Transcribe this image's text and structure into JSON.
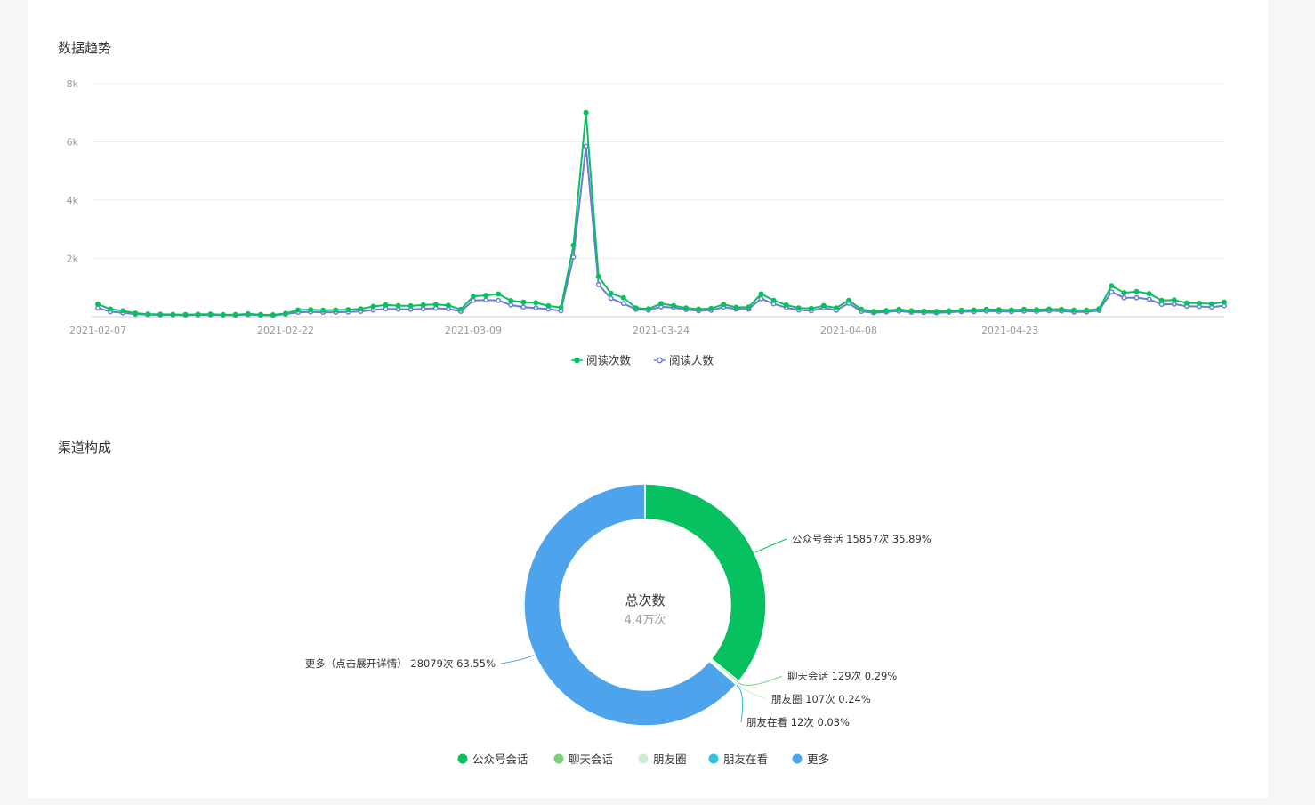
{
  "sections": {
    "trend_title": "数据趋势",
    "channel_title": "渠道构成"
  },
  "colors": {
    "reads": "#07c160",
    "readers": "#6e7ad8",
    "pie": [
      "#07c160",
      "#7dd07a",
      "#c8efd0",
      "#30c0e0",
      "#4ea4ec"
    ]
  },
  "chart_data": [
    {
      "type": "line",
      "title": "数据趋势",
      "x_start": "2021-02-07",
      "x_end": "2021-04-23",
      "x_tick_labels": [
        "2021-02-07",
        "2021-02-22",
        "2021-03-09",
        "2021-03-24",
        "2021-04-08",
        "2021-04-23"
      ],
      "y_tick_labels": [
        "8k",
        "6k",
        "4k",
        "2k"
      ],
      "ylim": [
        0,
        8000
      ],
      "grid": true,
      "legend_position": "bottom-center",
      "series": [
        {
          "name": "阅读次数",
          "values": [
            430,
            260,
            200,
            120,
            90,
            80,
            75,
            70,
            80,
            85,
            70,
            70,
            95,
            70,
            60,
            110,
            230,
            240,
            220,
            230,
            240,
            270,
            350,
            400,
            380,
            370,
            400,
            420,
            390,
            250,
            700,
            730,
            780,
            550,
            500,
            480,
            370,
            310,
            2450,
            7000,
            1380,
            800,
            650,
            300,
            270,
            450,
            380,
            300,
            260,
            280,
            420,
            320,
            330,
            780,
            560,
            400,
            300,
            280,
            380,
            300,
            560,
            250,
            180,
            210,
            250,
            200,
            190,
            180,
            200,
            220,
            230,
            250,
            240,
            230,
            250,
            240,
            260,
            250,
            220,
            220,
            270,
            1060,
            820,
            860,
            790,
            560,
            570,
            470,
            460,
            440,
            500
          ]
        },
        {
          "name": "阅读人数",
          "values": [
            300,
            170,
            130,
            90,
            70,
            60,
            60,
            55,
            60,
            65,
            55,
            55,
            70,
            55,
            45,
            90,
            150,
            160,
            150,
            150,
            160,
            180,
            230,
            270,
            260,
            250,
            270,
            290,
            270,
            180,
            560,
            570,
            560,
            400,
            330,
            300,
            260,
            200,
            2050,
            5850,
            1100,
            630,
            450,
            250,
            220,
            340,
            310,
            240,
            200,
            220,
            330,
            260,
            260,
            620,
            440,
            310,
            230,
            200,
            300,
            220,
            460,
            180,
            130,
            160,
            190,
            150,
            140,
            130,
            150,
            170,
            170,
            190,
            180,
            170,
            190,
            180,
            200,
            190,
            160,
            160,
            210,
            850,
            650,
            650,
            600,
            420,
            430,
            360,
            350,
            330,
            380
          ]
        }
      ]
    },
    {
      "type": "pie",
      "title": "渠道构成",
      "center_label": "总次数",
      "center_value": "4.4万次",
      "legend_position": "bottom-center",
      "slices": [
        {
          "name": "公众号会话",
          "value": 15857,
          "percent": 35.89,
          "label": "公众号会话 15857次 35.89%"
        },
        {
          "name": "聊天会话",
          "value": 129,
          "percent": 0.29,
          "label": "聊天会话 129次 0.29%"
        },
        {
          "name": "朋友圈",
          "value": 107,
          "percent": 0.24,
          "label": "朋友圈 107次 0.24%"
        },
        {
          "name": "朋友在看",
          "value": 12,
          "percent": 0.03,
          "label": "朋友在看 12次 0.03%"
        },
        {
          "name": "更多",
          "value": 28079,
          "percent": 63.55,
          "label": "更多（点击展开详情） 28079次 63.55%"
        }
      ]
    }
  ]
}
